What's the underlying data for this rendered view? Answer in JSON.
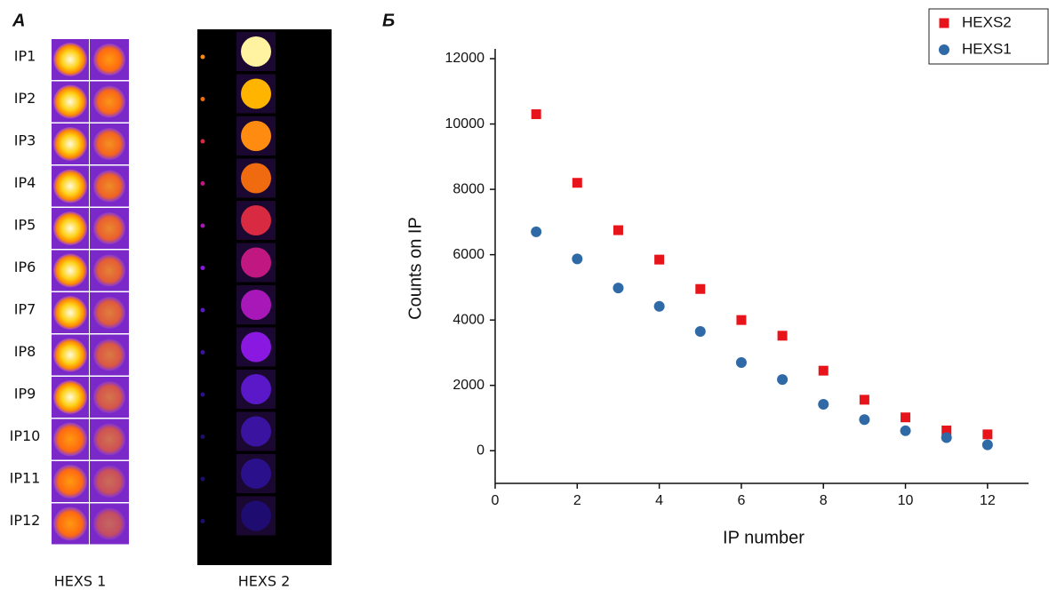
{
  "panel_labels": [
    "А",
    "Б"
  ],
  "left_panel": {
    "ip_labels": [
      "IP1",
      "IP2",
      "IP3",
      "IP4",
      "IP5",
      "IP6",
      "IP7",
      "IP8",
      "IP9",
      "IP10",
      "IP11",
      "IP12"
    ],
    "captions": [
      "HEXS 1",
      "HEXS 2"
    ]
  },
  "chart_data": {
    "type": "scatter",
    "x_label": "IP number",
    "y_label": "Counts on IP",
    "x": [
      1,
      2,
      3,
      4,
      5,
      6,
      7,
      8,
      9,
      10,
      11,
      12
    ],
    "series": [
      {
        "name": "HEXS2",
        "color": "#e8141b",
        "marker": "square",
        "values": [
          10300,
          8200,
          6750,
          5850,
          4950,
          4000,
          3520,
          2450,
          1560,
          1020,
          620,
          500
        ]
      },
      {
        "name": "HEXS1",
        "color": "#2f6aa7",
        "marker": "circle",
        "values": [
          6700,
          5870,
          4980,
          4420,
          3650,
          2700,
          2180,
          1420,
          950,
          610,
          400,
          180
        ]
      }
    ],
    "xlim": [
      0,
      13
    ],
    "xticks": [
      0,
      2,
      4,
      6,
      8,
      10,
      12
    ],
    "ylim": [
      -1000,
      12300
    ],
    "yticks": [
      0,
      2000,
      4000,
      6000,
      8000,
      10000,
      12000
    ],
    "legend": "top-right"
  }
}
